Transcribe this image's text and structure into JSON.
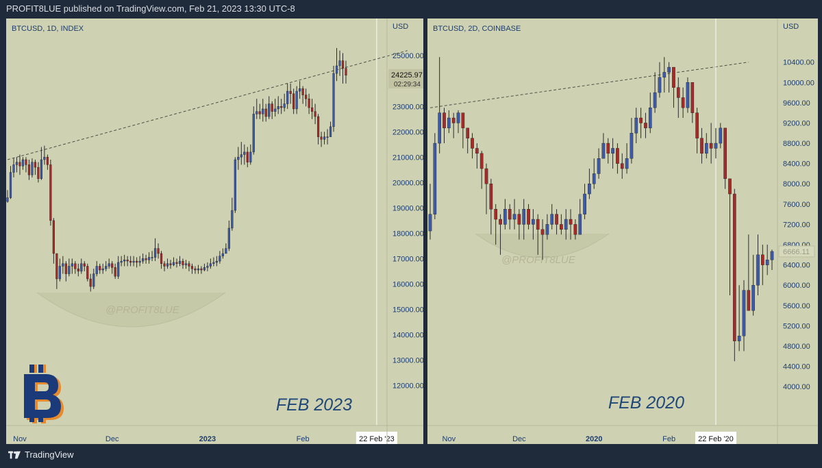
{
  "header": {
    "text": "PROFIT8LUE published on TradingView.com, Feb 21, 2023 13:30 UTC-8"
  },
  "footer": {
    "brand": "TradingView"
  },
  "colors": {
    "panel_bg": "#cfd2b2",
    "page_bg": "#1f2a3a",
    "up": "#3d5aa8",
    "down": "#a52a2a",
    "text": "#1d3c6e"
  },
  "chart_data": [
    {
      "type": "candlestick",
      "title": "BTCUSD, 1D, INDEX",
      "currency": "USD",
      "ylim": [
        11500,
        25600
      ],
      "yticks": [
        12000,
        13000,
        14000,
        15000,
        16000,
        17000,
        18000,
        19000,
        20000,
        21000,
        22000,
        23000,
        24000,
        25000
      ],
      "ytick_labels": [
        "12000.00",
        "13000.00",
        "14000.00",
        "15000.00",
        "16000.00",
        "17000.00",
        "18000.00",
        "19000.00",
        "20000.00",
        "21000.00",
        "22000.00",
        "23000.00",
        "24000.00",
        "25000.00"
      ],
      "xticks": [
        {
          "label": "Nov",
          "idx": 4,
          "bold": false
        },
        {
          "label": "Dec",
          "idx": 34,
          "bold": false
        },
        {
          "label": "2023",
          "idx": 65,
          "bold": true
        },
        {
          "label": "Feb",
          "idx": 96,
          "bold": false
        }
      ],
      "last_price": "24225.97",
      "countdown": "02:29:34",
      "cursor_label": "22 Feb '23",
      "cursor_idx": 120,
      "big_label": "FEB 2023",
      "watermark": "@PROFIT8LUE",
      "trendline": [
        [
          0,
          20900
        ],
        [
          130,
          25200
        ]
      ],
      "closes": [
        19400,
        20400,
        20700,
        20800,
        20650,
        20900,
        20700,
        20300,
        20800,
        20600,
        20150,
        20900,
        21000,
        20700,
        18500,
        17200,
        16200,
        16700,
        16800,
        16400,
        16700,
        16800,
        16600,
        16500,
        16800,
        16700,
        16200,
        15900,
        16400,
        16700,
        16550,
        16600,
        16700,
        16800,
        16650,
        16300,
        16850,
        16900,
        16950,
        16900,
        16850,
        16900,
        16850,
        16900,
        17000,
        16950,
        17050,
        17050,
        17400,
        17200,
        16800,
        16700,
        16800,
        16750,
        16850,
        16800,
        16900,
        16750,
        16800,
        16700,
        16600,
        16550,
        16600,
        16550,
        16650,
        16700,
        16800,
        16850,
        16900,
        17100,
        17200,
        17400,
        18200,
        18900,
        20900,
        21000,
        21100,
        21200,
        20800,
        21200,
        22700,
        22800,
        22700,
        22900,
        22600,
        23100,
        22800,
        22900,
        23000,
        22950,
        23100,
        23600,
        23500,
        22900,
        23600,
        23700,
        23450,
        23300,
        22950,
        22800,
        22600,
        21800,
        21700,
        21800,
        21800,
        22200,
        24300,
        24600,
        24800,
        24500,
        24225.97
      ],
      "highs": [
        19700,
        20650,
        20950,
        21000,
        21100,
        21000,
        21000,
        20900,
        20950,
        20900,
        20800,
        21400,
        21450,
        21100,
        20900,
        18600,
        17100,
        17000,
        17100,
        16900,
        17000,
        17000,
        16900,
        16800,
        17000,
        16900,
        16800,
        16400,
        16600,
        16900,
        16800,
        16800,
        16900,
        17000,
        16900,
        16800,
        17100,
        17100,
        17150,
        17100,
        17100,
        17100,
        17050,
        17100,
        17200,
        17150,
        17250,
        17300,
        17800,
        17600,
        17300,
        16900,
        17000,
        16950,
        17050,
        17000,
        17100,
        17000,
        16950,
        16900,
        16800,
        16700,
        16750,
        16700,
        16800,
        16850,
        17000,
        17050,
        17100,
        17300,
        17400,
        17600,
        18500,
        19400,
        21000,
        21400,
        21600,
        21500,
        21400,
        21500,
        23000,
        23300,
        23100,
        23300,
        23100,
        23400,
        23200,
        23300,
        23400,
        23300,
        23500,
        23900,
        23900,
        23700,
        23800,
        24000,
        23800,
        23700,
        23500,
        23300,
        23100,
        22700,
        22000,
        22000,
        22100,
        22400,
        24600,
        25300,
        25200,
        25100,
        24800
      ],
      "lows": [
        19200,
        19350,
        20200,
        20400,
        20300,
        20500,
        20400,
        20100,
        20200,
        20300,
        20000,
        20100,
        20700,
        20500,
        18300,
        16800,
        15800,
        16100,
        16400,
        16100,
        16300,
        16400,
        16400,
        16300,
        16400,
        16500,
        16100,
        15700,
        15800,
        16300,
        16400,
        16400,
        16500,
        16600,
        16400,
        16200,
        16200,
        16700,
        16700,
        16700,
        16700,
        16700,
        16650,
        16700,
        16800,
        16800,
        16800,
        16900,
        16900,
        17000,
        16600,
        16500,
        16600,
        16600,
        16700,
        16650,
        16700,
        16600,
        16600,
        16500,
        16400,
        16400,
        16400,
        16400,
        16500,
        16500,
        16600,
        16700,
        16700,
        16800,
        17000,
        17200,
        17300,
        18100,
        18800,
        20500,
        20700,
        20700,
        20600,
        20700,
        21100,
        22500,
        22500,
        22400,
        22400,
        22500,
        22500,
        22600,
        22700,
        22700,
        22800,
        22900,
        23100,
        22700,
        22700,
        23300,
        23100,
        23000,
        22700,
        22500,
        22300,
        21500,
        21400,
        21500,
        21500,
        21800,
        22000,
        24000,
        24200,
        23900,
        23900
      ]
    },
    {
      "type": "candlestick",
      "title": "BTCUSD, 2D, COINBASE",
      "currency": "USD",
      "ylim": [
        3800,
        10720
      ],
      "yticks": [
        4000,
        4400,
        4800,
        5200,
        5600,
        6000,
        6400,
        6800,
        7200,
        7600,
        8000,
        8400,
        8800,
        9200,
        9600,
        10000,
        10400
      ],
      "ytick_labels": [
        "4000.00",
        "4400.00",
        "4800.00",
        "5200.00",
        "5600.00",
        "6000.00",
        "6400.00",
        "6800.00",
        "7200.00",
        "7600.00",
        "8000.00",
        "8400.00",
        "8800.00",
        "9200.00",
        "9600.00",
        "10000.00",
        "10400.00"
      ],
      "xticks": [
        {
          "label": "Nov",
          "idx": 4,
          "bold": false
        },
        {
          "label": "Dec",
          "idx": 19,
          "bold": false
        },
        {
          "label": "2020",
          "idx": 35,
          "bold": true
        },
        {
          "label": "Feb",
          "idx": 51,
          "bold": false
        }
      ],
      "last_price": "6666.11",
      "cursor_label": "22 Feb '20",
      "cursor_idx": 61,
      "big_label": "FEB 2020",
      "watermark": "@PROFIT8LUE",
      "trendline": [
        [
          0,
          9500
        ],
        [
          68,
          10400
        ]
      ],
      "closes": [
        7400,
        8800,
        9400,
        9100,
        9300,
        9200,
        9400,
        9100,
        8900,
        8700,
        8600,
        8300,
        8000,
        7500,
        7300,
        7200,
        7500,
        7300,
        7400,
        7200,
        7500,
        7200,
        7300,
        7100,
        7000,
        7200,
        7400,
        7200,
        7100,
        7300,
        7200,
        7000,
        7400,
        7800,
        8000,
        8200,
        8500,
        8800,
        8600,
        8700,
        8400,
        8300,
        8500,
        9000,
        9300,
        9200,
        9100,
        9500,
        9800,
        10100,
        10200,
        10300,
        9900,
        9700,
        9500,
        10000,
        9400,
        8900,
        8600,
        8800,
        8700,
        8800,
        9100,
        8100,
        7800,
        4900,
        5000,
        5900,
        5500,
        6000,
        6600,
        6400,
        6500,
        6666.11
      ],
      "highs": [
        8000,
        9000,
        10500,
        9500,
        9450,
        9400,
        9450,
        9350,
        9100,
        9000,
        8800,
        8650,
        8400,
        8100,
        7600,
        7400,
        7700,
        7600,
        7700,
        7500,
        7700,
        7600,
        7500,
        7400,
        7300,
        7400,
        7600,
        7500,
        7400,
        7500,
        7500,
        7300,
        7700,
        8000,
        8300,
        8500,
        8700,
        9000,
        8900,
        8900,
        8800,
        8600,
        8800,
        9300,
        9500,
        9500,
        9400,
        9800,
        10200,
        10400,
        10500,
        10400,
        10300,
        10100,
        9900,
        10100,
        10000,
        9500,
        9100,
        9000,
        9200,
        9100,
        9200,
        9100,
        8100,
        7900,
        6000,
        6100,
        7000,
        6600,
        7000,
        6800,
        6800,
        6700
      ],
      "lows": [
        6900,
        7300,
        8600,
        8800,
        9000,
        8900,
        9000,
        8700,
        8600,
        8500,
        8300,
        7900,
        7400,
        7000,
        6800,
        6600,
        7100,
        7100,
        7100,
        6900,
        6900,
        7100,
        6900,
        6600,
        6500,
        6900,
        7100,
        7000,
        7000,
        6900,
        6900,
        6900,
        7000,
        7300,
        7700,
        7900,
        8100,
        8500,
        8400,
        8300,
        8200,
        8100,
        8200,
        8400,
        8800,
        8900,
        8900,
        9000,
        9400,
        9700,
        9800,
        9800,
        9500,
        9300,
        9300,
        9400,
        9200,
        8600,
        8400,
        8500,
        8400,
        8500,
        8700,
        7900,
        5800,
        4500,
        4700,
        4700,
        5500,
        5400,
        5800,
        6000,
        6200,
        6300
      ]
    }
  ]
}
